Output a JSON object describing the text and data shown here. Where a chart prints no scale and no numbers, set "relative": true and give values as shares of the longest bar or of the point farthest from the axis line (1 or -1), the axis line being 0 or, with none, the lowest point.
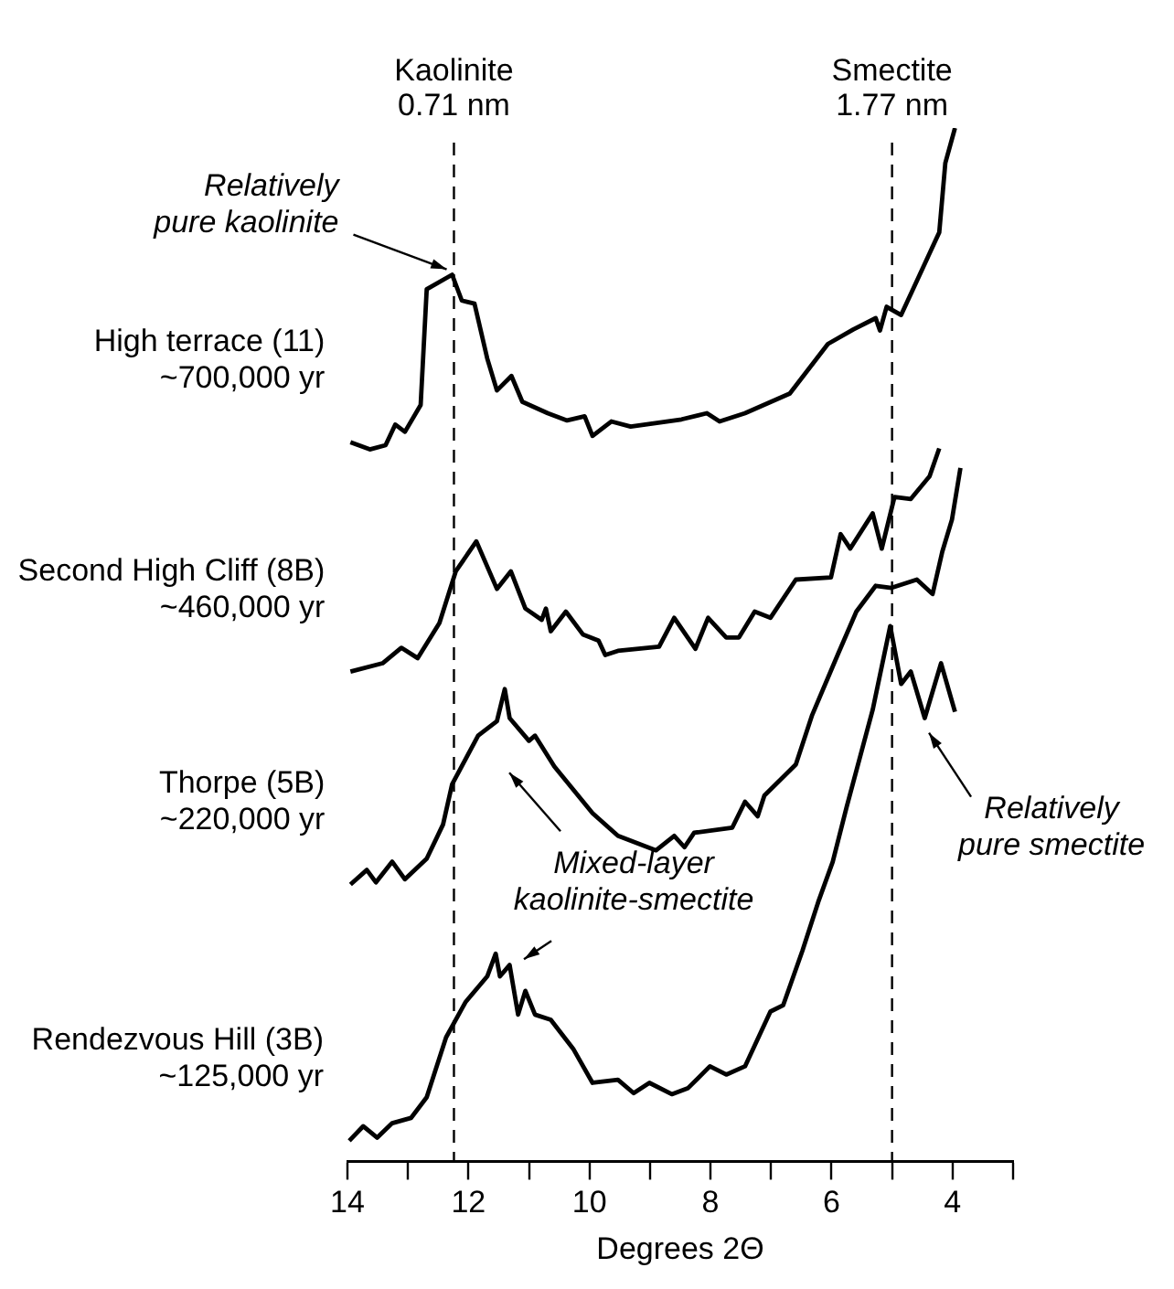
{
  "chart_data": {
    "type": "line",
    "relative": true,
    "xlabel": "Degrees 2Θ",
    "xlim": [
      14,
      3
    ],
    "xticks": [
      14,
      {
        "value": 13,
        "label": null
      },
      12,
      {
        "value": 11,
        "label": null
      },
      10,
      {
        "value": 9,
        "label": null
      },
      8,
      {
        "value": 7,
        "label": null
      },
      6,
      {
        "value": 5,
        "label": null
      },
      4,
      {
        "value": 3,
        "label": null
      }
    ],
    "grid": false,
    "legend": false,
    "marker": "none",
    "line_style": "solid",
    "series": [
      {
        "name": "High terrace (11)\n~700,000 yr",
        "color": "#000000",
        "x": [
          13.95,
          13.63,
          13.37,
          13.21,
          13.05,
          12.79,
          12.69,
          12.27,
          12.11,
          11.9,
          11.69,
          11.53,
          11.29,
          11.11,
          10.69,
          10.37,
          10.08,
          9.95,
          9.64,
          9.32,
          8.48,
          8.06,
          7.85,
          7.43,
          6.69,
          6.06,
          5.64,
          5.27,
          5.2,
          5.09,
          4.85,
          4.48,
          4.22,
          4.12,
          3.96
        ],
        "values": [
          0.696,
          0.689,
          0.693,
          0.713,
          0.706,
          0.732,
          0.844,
          0.858,
          0.833,
          0.83,
          0.777,
          0.746,
          0.76,
          0.735,
          0.724,
          0.717,
          0.721,
          0.702,
          0.716,
          0.711,
          0.718,
          0.724,
          0.716,
          0.724,
          0.743,
          0.791,
          0.805,
          0.816,
          0.804,
          0.827,
          0.819,
          0.866,
          0.899,
          0.966,
          1
        ]
      },
      {
        "name": "Second High Cliff (8B)\n~460,000 yr",
        "color": "#000000",
        "x": [
          13.95,
          13.42,
          13.11,
          12.84,
          12.48,
          12.21,
          11.87,
          11.53,
          11.3,
          11.06,
          10.79,
          10.72,
          10.64,
          10.39,
          10.11,
          9.85,
          9.74,
          9.53,
          8.85,
          8.6,
          8.25,
          8.04,
          7.74,
          7.53,
          7.27,
          7.01,
          6.59,
          6.01,
          5.85,
          5.69,
          5.32,
          5.17,
          4.96,
          4.69,
          4.38,
          4.22
        ],
        "values": [
          0.474,
          0.482,
          0.497,
          0.487,
          0.521,
          0.571,
          0.6,
          0.554,
          0.571,
          0.535,
          0.524,
          0.535,
          0.513,
          0.532,
          0.51,
          0.504,
          0.49,
          0.494,
          0.498,
          0.526,
          0.496,
          0.526,
          0.507,
          0.507,
          0.532,
          0.526,
          0.563,
          0.565,
          0.607,
          0.593,
          0.627,
          0.593,
          0.643,
          0.641,
          0.663,
          0.69
        ]
      },
      {
        "name": "Thorpe (5B)\n~220,000 yr",
        "color": "#000000",
        "x": [
          13.95,
          13.68,
          13.53,
          13.26,
          13.05,
          12.69,
          12.42,
          12.27,
          11.84,
          11.53,
          11.4,
          11.32,
          11.0,
          10.9,
          10.58,
          9.95,
          9.53,
          8.9,
          8.6,
          8.43,
          8.27,
          7.64,
          7.43,
          7.22,
          7.11,
          6.59,
          6.32,
          5.9,
          5.59,
          5.27,
          5.01,
          4.59,
          4.33,
          4.17,
          4.01,
          3.87
        ],
        "values": [
          0.268,
          0.282,
          0.27,
          0.29,
          0.273,
          0.293,
          0.326,
          0.365,
          0.412,
          0.426,
          0.457,
          0.429,
          0.407,
          0.412,
          0.382,
          0.337,
          0.315,
          0.301,
          0.315,
          0.304,
          0.318,
          0.323,
          0.348,
          0.334,
          0.354,
          0.384,
          0.432,
          0.49,
          0.532,
          0.557,
          0.555,
          0.563,
          0.549,
          0.59,
          0.621,
          0.671
        ]
      },
      {
        "name": "Rendezvous Hill (3B)\n~125,000 yr",
        "color": "#000000",
        "x": [
          13.97,
          13.74,
          13.51,
          13.26,
          12.95,
          12.69,
          12.37,
          12.05,
          11.69,
          11.55,
          11.48,
          11.32,
          11.18,
          11.06,
          10.9,
          10.64,
          10.27,
          9.95,
          9.53,
          9.27,
          9.01,
          8.64,
          8.37,
          8.01,
          7.74,
          7.43,
          7.01,
          6.8,
          6.48,
          6.22,
          5.98,
          5.75,
          5.32,
          5.03,
          4.85,
          4.69,
          4.46,
          4.19,
          3.96
        ],
        "values": [
          0.02,
          0.034,
          0.023,
          0.037,
          0.042,
          0.062,
          0.12,
          0.154,
          0.179,
          0.201,
          0.179,
          0.19,
          0.142,
          0.165,
          0.142,
          0.137,
          0.109,
          0.076,
          0.079,
          0.066,
          0.076,
          0.065,
          0.071,
          0.092,
          0.084,
          0.092,
          0.145,
          0.151,
          0.204,
          0.251,
          0.29,
          0.343,
          0.437,
          0.518,
          0.462,
          0.474,
          0.429,
          0.482,
          0.435
        ]
      }
    ],
    "ref_lines": [
      {
        "axis": "x",
        "value": 12.24,
        "label": "Kaolinite\n0.71 nm",
        "color": "#000000",
        "line_style": "dashed"
      },
      {
        "axis": "x",
        "value": 5.0,
        "label": "Smectite\n1.77 nm",
        "color": "#000000",
        "line_style": "dashed"
      }
    ],
    "annotations": [
      {
        "text": "Relatively\npure kaolinite",
        "x": 12.27,
        "y": 0.858
      },
      "Mixed-layer\nkaolinite-smectite",
      {
        "text": "Relatively\npure smectite",
        "x": 4.48,
        "y": 0.42
      }
    ]
  }
}
